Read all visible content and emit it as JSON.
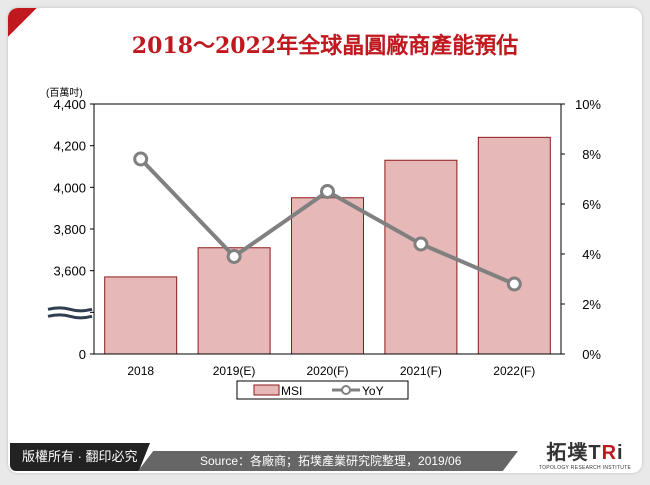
{
  "title": "2018～2022年全球晶圓廠商產能預估",
  "footer": {
    "copyright": "版權所有 · 翻印必究",
    "source": "Source：各廠商；拓墣產業研究院整理，2019/06",
    "logo_text": "拓墣TRi",
    "logo_subtext": "TOPOLOGY RESEARCH INSTITUTE"
  },
  "chart_data": {
    "type": "bar+line",
    "title": "2018～2022年全球晶圓廠商產能預估",
    "categories": [
      "2018",
      "2019(E)",
      "2020(F)",
      "2021(F)",
      "2022(F)"
    ],
    "y_unit_label": "(百萬吋)",
    "y_ticks": [
      "4,400",
      "4,200",
      "4,000",
      "3,800",
      "3,600",
      "",
      "0"
    ],
    "y_tick_values": [
      4400,
      4200,
      4000,
      3800,
      3600,
      3400,
      0
    ],
    "y_axis_break": true,
    "y2_ticks": [
      "10%",
      "8%",
      "6%",
      "4%",
      "2%",
      "0%"
    ],
    "y2_tick_values": [
      10,
      8,
      6,
      4,
      2,
      0
    ],
    "ylim": [
      3200,
      4400
    ],
    "y2lim": [
      0,
      10
    ],
    "series": [
      {
        "name": "MSI",
        "type": "bar",
        "axis": "left",
        "values": [
          3570,
          3710,
          3950,
          4130,
          4240
        ],
        "color": "#e6b8b7",
        "edge": "#8b1a1a"
      },
      {
        "name": "YoY",
        "type": "line",
        "axis": "right",
        "values": [
          7.8,
          3.9,
          6.5,
          4.4,
          2.8
        ],
        "unit": "%",
        "color": "#808080"
      }
    ],
    "legend_position": "bottom",
    "grid": false
  }
}
